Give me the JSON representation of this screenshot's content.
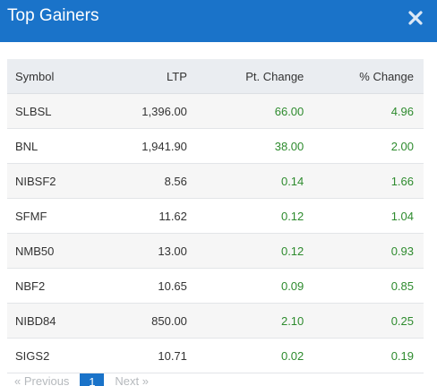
{
  "header": {
    "title": "Top Gainers"
  },
  "table": {
    "columns": [
      "Symbol",
      "LTP",
      "Pt. Change",
      "% Change"
    ],
    "rows": [
      [
        "SLBSL",
        "1,396.00",
        "66.00",
        "4.96"
      ],
      [
        "BNL",
        "1,941.90",
        "38.00",
        "2.00"
      ],
      [
        "NIBSF2",
        "8.56",
        "0.14",
        "1.66"
      ],
      [
        "SFMF",
        "11.62",
        "0.12",
        "1.04"
      ],
      [
        "NMB50",
        "13.00",
        "0.12",
        "0.93"
      ],
      [
        "NBF2",
        "10.65",
        "0.09",
        "0.85"
      ],
      [
        "NIBD84",
        "850.00",
        "2.10",
        "0.25"
      ],
      [
        "SIGS2",
        "10.71",
        "0.02",
        "0.19"
      ]
    ]
  },
  "pagination": {
    "previous_label": "« Previous",
    "current_page": "1",
    "next_label": "Next »"
  },
  "colors": {
    "header_bg": "#1a73c9",
    "positive": "#2e8b2e"
  }
}
